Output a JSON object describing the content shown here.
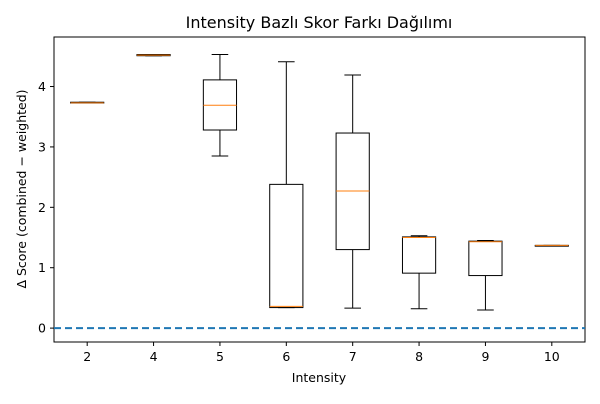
{
  "chart_data": {
    "type": "box",
    "title": "Intensity Bazlı Skor Farkı Dağılımı",
    "xlabel": "Intensity",
    "ylabel": "Δ Score (combined − weighted)",
    "ylim": [
      -0.23,
      4.82
    ],
    "yticks": [
      0,
      1,
      2,
      3,
      4
    ],
    "grid": false,
    "reference_line": {
      "y": 0,
      "style": "dashed",
      "color": "#1f77b4"
    },
    "box_color": "#000000",
    "median_color": "#ff7f0e",
    "categories": [
      "2",
      "4",
      "5",
      "6",
      "7",
      "8",
      "9",
      "10"
    ],
    "boxes": [
      {
        "label": "2",
        "whisker_low": 3.73,
        "q1": 3.73,
        "median": 3.73,
        "q3": 3.74,
        "whisker_high": 3.74
      },
      {
        "label": "4",
        "whisker_low": 4.51,
        "q1": 4.51,
        "median": 4.52,
        "q3": 4.53,
        "whisker_high": 4.53
      },
      {
        "label": "5",
        "whisker_low": 2.85,
        "q1": 3.28,
        "median": 3.69,
        "q3": 4.11,
        "whisker_high": 4.53
      },
      {
        "label": "6",
        "whisker_low": 0.34,
        "q1": 0.34,
        "median": 0.36,
        "q3": 2.38,
        "whisker_high": 4.41
      },
      {
        "label": "7",
        "whisker_low": 0.33,
        "q1": 1.3,
        "median": 2.27,
        "q3": 3.23,
        "whisker_high": 4.19
      },
      {
        "label": "8",
        "whisker_low": 0.32,
        "q1": 0.91,
        "median": 1.5,
        "q3": 1.51,
        "whisker_high": 1.53
      },
      {
        "label": "9",
        "whisker_low": 0.3,
        "q1": 0.87,
        "median": 1.43,
        "q3": 1.44,
        "whisker_high": 1.45
      },
      {
        "label": "10",
        "whisker_low": 1.36,
        "q1": 1.36,
        "median": 1.37,
        "q3": 1.37,
        "whisker_high": 1.37
      }
    ]
  }
}
